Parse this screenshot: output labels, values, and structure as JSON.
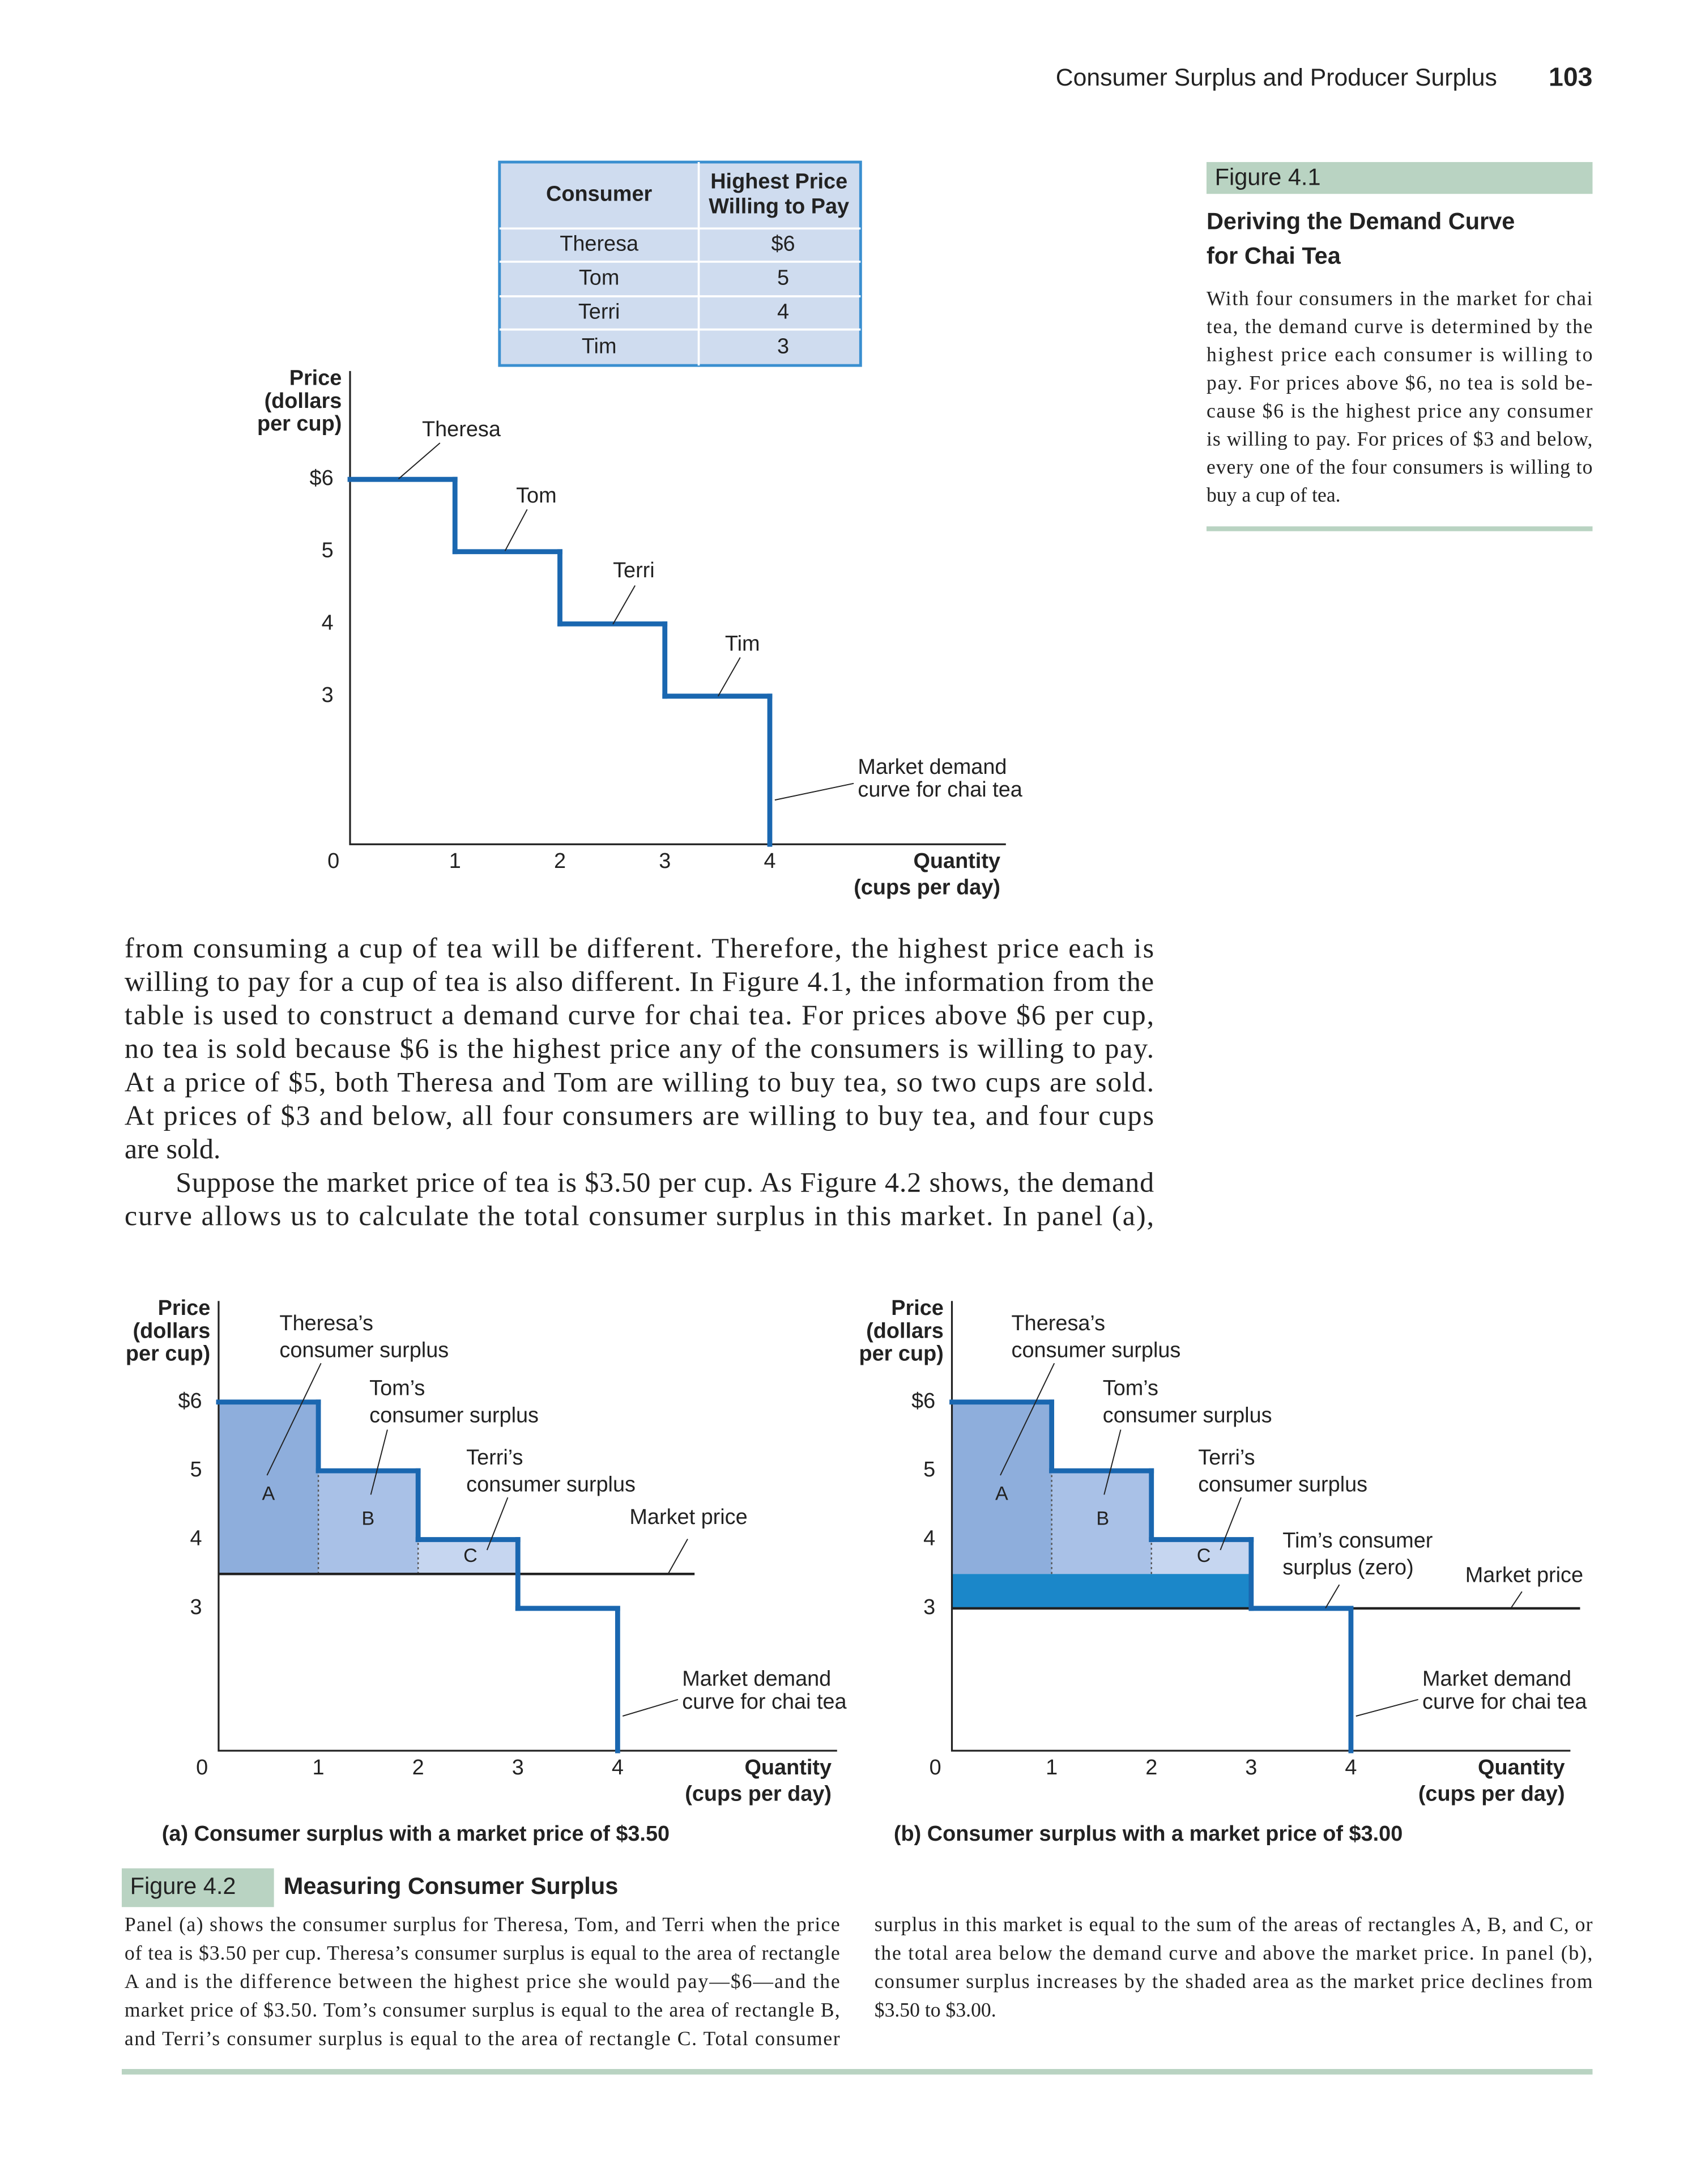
{
  "header": {
    "running_title": "Consumer Surplus and Producer Surplus",
    "page_number": "103"
  },
  "table": {
    "header": [
      "Consumer",
      [
        "Highest Price",
        "Willing to Pay"
      ]
    ],
    "rows": [
      [
        "Theresa",
        "$6"
      ],
      [
        "Tom",
        "5"
      ],
      [
        "Terri",
        "4"
      ],
      [
        "Tim",
        "3"
      ]
    ]
  },
  "figure_4_1": {
    "label": "Figure 4.1",
    "title_lines": [
      "Deriving the Demand Curve",
      "for Chai Tea"
    ],
    "caption_lines": [
      "With four consumers in the market for chai",
      "tea, the demand curve is determined by the",
      "highest price each consumer is willing to",
      "pay. For prices above $6, no tea is sold be-",
      "cause $6 is the highest price any consumer",
      "is willing to pay. For prices of $3 and below,",
      "every one of the four consumers is willing to",
      "buy a cup of tea."
    ]
  },
  "body": {
    "paragraphs": [
      [
        "from consuming a cup of tea will be different. Therefore, the highest price each is",
        "willing to pay for a cup of tea is also different. In Figure 4.1, the information from the",
        "table is used to construct a demand curve for chai tea. For prices above $6 per cup,",
        "no tea is sold because $6 is the highest price any of the consumers is willing to pay.",
        "At a price of $5, both Theresa and Tom are willing to buy tea, so two cups are sold.",
        "At prices of $3 and below, all four consumers are willing to buy tea, and four cups",
        "are sold."
      ],
      [
        "Suppose the market price of tea is $3.50 per cup. As Figure 4.2 shows, the demand",
        "curve allows us to calculate the total consumer surplus in this market. In panel (a),"
      ]
    ]
  },
  "chart_data": [
    {
      "type": "step",
      "y_label": [
        "Price",
        "(dollars",
        "per cup)"
      ],
      "x_label": [
        "Quantity",
        "(cups per day)"
      ],
      "xlim": [
        0,
        6.25
      ],
      "xticks": [
        0,
        1,
        2,
        3,
        4
      ],
      "ylim": [
        0.95,
        7.5
      ],
      "yticks": [
        {
          "value": 6,
          "label": "$6"
        },
        5,
        4,
        3
      ],
      "values": [
        6,
        5,
        4,
        3
      ],
      "step_labels": [
        "Theresa",
        "Tom",
        "Terri",
        "Tim"
      ],
      "demand_label": [
        "Market demand",
        "curve for chai tea"
      ],
      "color": "#1a67b0"
    },
    {
      "type": "step",
      "y_label": [
        "Price",
        "(dollars",
        "per cup)"
      ],
      "x_label": [
        "Quantity",
        "(cups per day)"
      ],
      "xlim": [
        0,
        6.2
      ],
      "xticks": [
        0,
        1,
        2,
        3,
        4
      ],
      "ylim": [
        0.93,
        7.47
      ],
      "yticks": [
        {
          "value": 6,
          "label": "$6"
        },
        5,
        4,
        3
      ],
      "values": [
        6,
        5,
        4,
        3
      ],
      "market_price": 3.5,
      "market_price_label": "Market price",
      "surplus_labels": [
        [
          "Theresa’s",
          "consumer surplus"
        ],
        [
          "Tom’s",
          "consumer surplus"
        ],
        [
          "Terri’s",
          "consumer surplus"
        ]
      ],
      "area_labels": [
        "A",
        "B",
        "C"
      ],
      "shade_colors": [
        "#8eaedc",
        "#a9c1e7",
        "#c6d6f0"
      ],
      "demand_label": [
        "Market demand",
        "curve for chai tea"
      ],
      "caption": "(a) Consumer surplus with a market price of $3.50",
      "color": "#1a67b0"
    },
    {
      "type": "step",
      "y_label": [
        "Price",
        "(dollars",
        "per cup)"
      ],
      "x_label": [
        "Quantity",
        "(cups per day)"
      ],
      "xlim": [
        0,
        6.2
      ],
      "xticks": [
        0,
        1,
        2,
        3,
        4
      ],
      "ylim": [
        0.93,
        7.47
      ],
      "yticks": [
        {
          "value": 6,
          "label": "$6"
        },
        5,
        4,
        3
      ],
      "values": [
        6,
        5,
        4,
        3
      ],
      "market_price": 3,
      "previous_price": 3.5,
      "market_price_label": "Market price",
      "surplus_labels": [
        [
          "Theresa’s",
          "consumer surplus"
        ],
        [
          "Tom’s",
          "consumer surplus"
        ],
        [
          "Terri’s",
          "consumer surplus"
        ],
        [
          "Tim’s consumer",
          "surplus (zero)"
        ]
      ],
      "area_labels": [
        "A",
        "B",
        "C"
      ],
      "shade_colors": [
        "#8eaedc",
        "#a9c1e7",
        "#c6d6f0"
      ],
      "increase_color": "#1b87c9",
      "demand_label": [
        "Market demand",
        "curve for chai tea"
      ],
      "caption": "(b) Consumer surplus with a market price of $3.00",
      "color": "#1a67b0"
    }
  ],
  "figure_4_2": {
    "label": "Figure 4.2",
    "title": "Measuring Consumer Surplus",
    "caption_left": [
      "Panel (a) shows the consumer surplus for Theresa, Tom, and Terri when the price",
      "of tea is $3.50 per cup. Theresa’s consumer surplus is equal to the area of rectangle",
      "A and is the difference between the highest price she would pay—$6—and the",
      "market price of $3.50. Tom’s consumer surplus is equal to the area of rectangle B,",
      "and Terri’s consumer surplus is equal to the area of rectangle C. Total consumer"
    ],
    "caption_right": [
      "surplus in this market is equal to the sum of the areas of rectangles A, B, and C, or",
      "the total area below the demand curve and above the market price. In panel (b),",
      "consumer surplus increases by the shaded area as the market price declines from",
      "$3.50 to $3.00."
    ]
  }
}
